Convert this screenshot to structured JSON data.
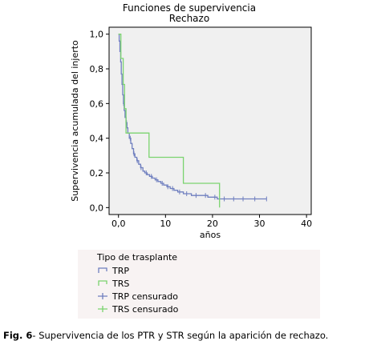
{
  "chart_data": {
    "type": "line",
    "title": "Funciones de supervivencia",
    "subtitle": "Rechazo",
    "xlabel": "años",
    "ylabel": "Supervivencia acumulada del injerto",
    "xlim": [
      -2,
      41
    ],
    "ylim": [
      -0.04,
      1.04
    ],
    "x_ticks": [
      0,
      10,
      20,
      30,
      40
    ],
    "x_tick_labels": [
      "0,0",
      "10",
      "20",
      "30",
      "40"
    ],
    "y_ticks": [
      0,
      0.2,
      0.4,
      0.6,
      0.8,
      1.0
    ],
    "y_tick_labels": [
      "0,0",
      "0,2",
      "0,4",
      "0,6",
      "0,8",
      "1,0"
    ],
    "grid": false,
    "legend_title": "Tipo de trasplante",
    "legend_position": "bottom",
    "colors": {
      "TRP": "#6f7fbf",
      "TRS": "#7bd36f",
      "plot_bg": "#f0f0f0",
      "legend_bg": "#f8f3f3",
      "axis": "#000000"
    },
    "series": [
      {
        "name": "TRP",
        "color": "#6f7fbf",
        "steps": [
          [
            0,
            1.0
          ],
          [
            0.15,
            0.96
          ],
          [
            0.3,
            0.9
          ],
          [
            0.45,
            0.84
          ],
          [
            0.6,
            0.77
          ],
          [
            0.75,
            0.71
          ],
          [
            0.9,
            0.65
          ],
          [
            1.05,
            0.6
          ],
          [
            1.2,
            0.56
          ],
          [
            1.4,
            0.52
          ],
          [
            1.6,
            0.49
          ],
          [
            1.8,
            0.46
          ],
          [
            2.0,
            0.43
          ],
          [
            2.3,
            0.4
          ],
          [
            2.6,
            0.37
          ],
          [
            2.9,
            0.34
          ],
          [
            3.2,
            0.31
          ],
          [
            3.5,
            0.29
          ],
          [
            3.9,
            0.27
          ],
          [
            4.3,
            0.25
          ],
          [
            4.7,
            0.23
          ],
          [
            5.2,
            0.21
          ],
          [
            5.6,
            0.2
          ],
          [
            6.1,
            0.19
          ],
          [
            6.6,
            0.18
          ],
          [
            7.2,
            0.17
          ],
          [
            7.8,
            0.16
          ],
          [
            8.4,
            0.15
          ],
          [
            9.0,
            0.14
          ],
          [
            9.6,
            0.13
          ],
          [
            10.3,
            0.12
          ],
          [
            11.0,
            0.11
          ],
          [
            11.8,
            0.1
          ],
          [
            12.6,
            0.09
          ],
          [
            13.8,
            0.08
          ],
          [
            15.5,
            0.07
          ],
          [
            19.0,
            0.06
          ],
          [
            21.0,
            0.05
          ]
        ],
        "end_x": 31.5,
        "censored_x": [
          1.1,
          1.7,
          2.5,
          3.3,
          4.0,
          4.8,
          5.9,
          7.0,
          8.1,
          9.3,
          10.5,
          11.5,
          13.0,
          14.5,
          16.5,
          18.5,
          20.5,
          22.5,
          24.5,
          26.5,
          29.0,
          31.5
        ]
      },
      {
        "name": "TRS",
        "color": "#7bd36f",
        "steps": [
          [
            0,
            1.0
          ],
          [
            0.5,
            0.86
          ],
          [
            1.0,
            0.71
          ],
          [
            1.3,
            0.57
          ],
          [
            1.6,
            0.43
          ],
          [
            6.5,
            0.29
          ],
          [
            13.8,
            0.14
          ],
          [
            21.5,
            0.0
          ]
        ],
        "end_x": 21.5,
        "censored_x": []
      }
    ],
    "legend_entries": [
      {
        "label": "TRP",
        "marker": "line",
        "color": "#6f7fbf"
      },
      {
        "label": "TRS",
        "marker": "line",
        "color": "#7bd36f"
      },
      {
        "label": "TRP censurado",
        "marker": "cross",
        "color": "#6f7fbf"
      },
      {
        "label": "TRS censurado",
        "marker": "cross",
        "color": "#7bd36f"
      }
    ]
  },
  "caption": {
    "label": "Fig. 6",
    "text": "- Supervivencia de los PTR y STR según la aparición de rechazo."
  }
}
